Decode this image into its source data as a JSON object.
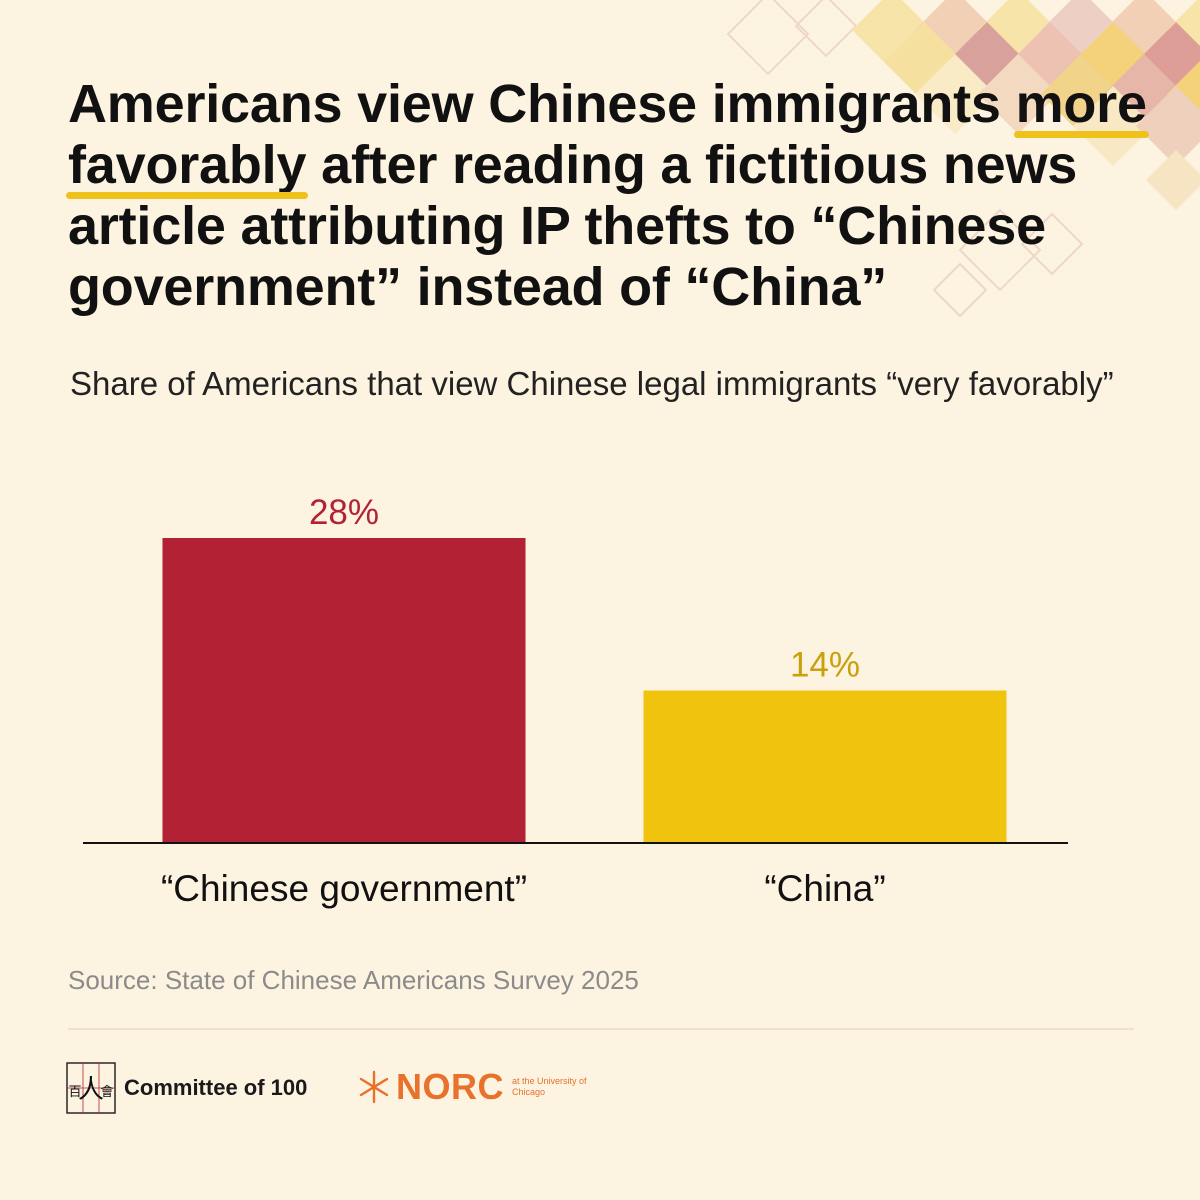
{
  "headline": {
    "line1_before": "Americans view Chinese immigrants ",
    "line1_mark": "more",
    "line2_mark": "favorably",
    "line2_after": " after reading a fictitious news",
    "line3": "article attributing IP thefts to “Chinese",
    "line4": "government” instead of “China”"
  },
  "subtitle": "Share of Americans that view Chinese legal immigrants “very favorably”",
  "chart_data": {
    "type": "bar",
    "title": "Share of Americans that view Chinese legal immigrants “very favorably”",
    "categories": [
      "“Chinese government”",
      "“China”"
    ],
    "values": [
      28,
      14
    ],
    "data_labels": [
      "28%",
      "14%"
    ],
    "colors": [
      "#b22234",
      "#f0c30f"
    ],
    "label_colors": [
      "#b22234",
      "#c9a10c"
    ],
    "unit": "%",
    "ylim": [
      0,
      28
    ],
    "grid": false,
    "legend": "none"
  },
  "source": "Source: State of Chinese Americans Survey 2025",
  "logos": {
    "committee_chars": [
      "百",
      "人",
      "會"
    ],
    "committee": "Committee of 100",
    "norc": "NORC",
    "norc_sub": "at the University of Chicago"
  },
  "colors": {
    "background": "#fdf3e1",
    "accent_red": "#b22234",
    "accent_yellow": "#f0c30f",
    "norc_orange": "#e8712b"
  }
}
